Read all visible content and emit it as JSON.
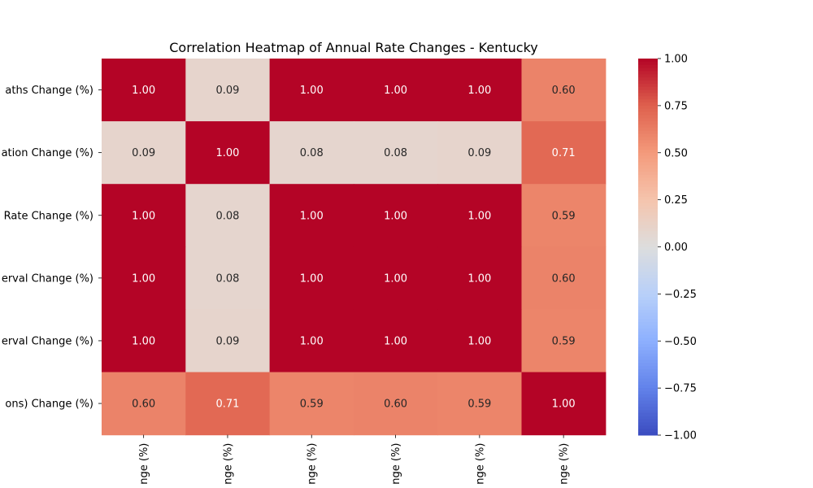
{
  "chart_data": {
    "type": "heatmap",
    "title": "Correlation Heatmap of Annual Rate Changes - Kentucky",
    "row_labels": [
      "aths Change (%)",
      "ation Change (%)",
      "Rate Change (%)",
      "erval Change (%)",
      "erval Change (%)",
      "ons) Change (%)"
    ],
    "col_labels": [
      "nge (%)",
      "nge (%)",
      "nge (%)",
      "nge (%)",
      "nge (%)",
      "nge (%)"
    ],
    "values": [
      [
        1.0,
        0.09,
        1.0,
        1.0,
        1.0,
        0.6
      ],
      [
        0.09,
        1.0,
        0.08,
        0.08,
        0.09,
        0.71
      ],
      [
        1.0,
        0.08,
        1.0,
        1.0,
        1.0,
        0.59
      ],
      [
        1.0,
        0.08,
        1.0,
        1.0,
        1.0,
        0.6
      ],
      [
        1.0,
        0.09,
        1.0,
        1.0,
        1.0,
        0.59
      ],
      [
        0.6,
        0.71,
        0.59,
        0.6,
        0.59,
        1.0
      ]
    ],
    "colorbar": {
      "min": -1.0,
      "max": 1.0,
      "ticks": [
        "1.00",
        "0.75",
        "0.50",
        "0.25",
        "0.00",
        "−0.25",
        "−0.50",
        "−0.75",
        "−1.00"
      ],
      "colormap": "coolwarm",
      "color_low": "#3b4cc0",
      "color_mid": "#dddddd",
      "color_high": "#b40426"
    },
    "value_format": "2 decimals"
  }
}
